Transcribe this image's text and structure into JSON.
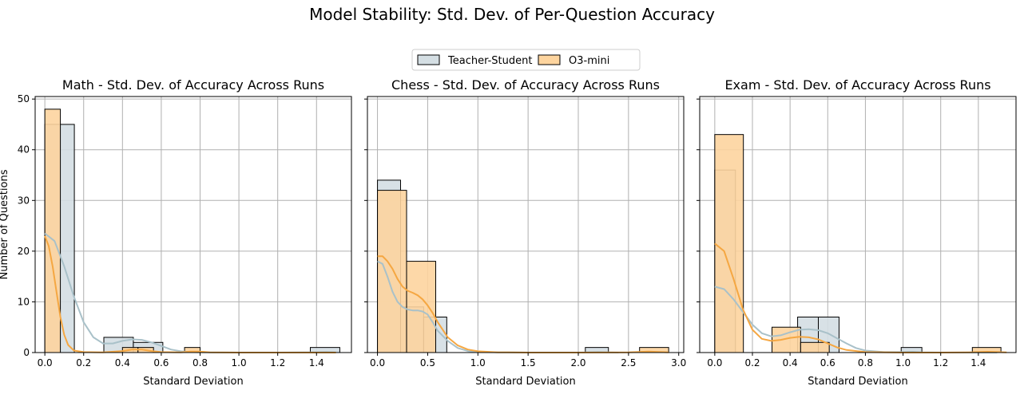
{
  "title": "Model Stability: Std. Dev. of Per-Question Accuracy",
  "legend": [
    {
      "name": "Teacher-Student",
      "color": "#d4dee3",
      "line": "#a9c1c9"
    },
    {
      "name": "O3-mini",
      "color": "#fdd49e",
      "line": "#f5a742"
    }
  ],
  "chart_data": [
    {
      "type": "histogram",
      "title": "Math - Std. Dev. of Accuracy Across Runs",
      "xlabel": "Standard Deviation",
      "ylabel": "Number of Questions",
      "xlim": [
        -0.05,
        1.58
      ],
      "ylim": [
        0,
        50.5
      ],
      "xticks": [
        0.0,
        0.2,
        0.4,
        0.6,
        0.8,
        1.0,
        1.2,
        1.4
      ],
      "xtick_labels": [
        "0.0",
        "0.2",
        "0.4",
        "0.6",
        "0.8",
        "1.0",
        "1.2",
        "1.4"
      ],
      "yticks": [
        0,
        10,
        20,
        30,
        40,
        50
      ],
      "ytick_labels": [
        "0",
        "10",
        "20",
        "30",
        "40",
        "50"
      ],
      "grid": true,
      "series": [
        {
          "name": "Teacher-Student",
          "bins": [
            [
              0.0,
              0.152,
              45
            ],
            [
              0.304,
              0.456,
              3
            ],
            [
              0.456,
              0.608,
              2
            ],
            [
              1.368,
              1.52,
              1
            ]
          ],
          "kde": [
            [
              0,
              23.5
            ],
            [
              0.05,
              22
            ],
            [
              0.1,
              17
            ],
            [
              0.15,
              11
            ],
            [
              0.2,
              6
            ],
            [
              0.25,
              3
            ],
            [
              0.3,
              1.8
            ],
            [
              0.35,
              1.8
            ],
            [
              0.4,
              2.3
            ],
            [
              0.45,
              2.6
            ],
            [
              0.5,
              2.5
            ],
            [
              0.55,
              2.0
            ],
            [
              0.6,
              1.3
            ],
            [
              0.65,
              0.6
            ],
            [
              0.7,
              0.25
            ],
            [
              0.75,
              0.1
            ],
            [
              0.8,
              0.05
            ],
            [
              1.0,
              0
            ],
            [
              1.2,
              0
            ],
            [
              1.4,
              0.05
            ],
            [
              1.45,
              0.1
            ],
            [
              1.5,
              0.05
            ]
          ]
        },
        {
          "name": "O3-mini",
          "bins": [
            [
              0.0,
              0.08,
              48
            ],
            [
              0.4,
              0.48,
              1
            ],
            [
              0.48,
              0.56,
              1
            ],
            [
              0.72,
              0.8,
              1
            ]
          ],
          "kde": [
            [
              0,
              23
            ],
            [
              0.02,
              21
            ],
            [
              0.04,
              17
            ],
            [
              0.06,
              12
            ],
            [
              0.08,
              7
            ],
            [
              0.1,
              3.5
            ],
            [
              0.12,
              1.5
            ],
            [
              0.15,
              0.4
            ],
            [
              0.2,
              0.1
            ],
            [
              0.3,
              0.05
            ],
            [
              0.4,
              0.3
            ],
            [
              0.45,
              0.6
            ],
            [
              0.5,
              0.6
            ],
            [
              0.55,
              0.3
            ],
            [
              0.6,
              0.1
            ],
            [
              0.7,
              0.05
            ],
            [
              0.75,
              0.2
            ],
            [
              0.8,
              0.2
            ],
            [
              0.85,
              0.05
            ],
            [
              1.0,
              0
            ],
            [
              1.2,
              0
            ],
            [
              1.4,
              0
            ],
            [
              1.5,
              0
            ]
          ]
        }
      ]
    },
    {
      "type": "histogram",
      "title": "Chess - Std. Dev. of Accuracy Across Runs",
      "xlabel": "Standard Deviation",
      "ylabel": "",
      "xlim": [
        -0.1,
        3.05
      ],
      "ylim": [
        0,
        50.5
      ],
      "xticks": [
        0.0,
        0.5,
        1.0,
        1.5,
        2.0,
        2.5,
        3.0
      ],
      "xtick_labels": [
        "0.0",
        "0.5",
        "1.0",
        "1.5",
        "2.0",
        "2.5",
        "3.0"
      ],
      "yticks": [
        0,
        10,
        20,
        30,
        40,
        50
      ],
      "ytick_labels": [
        "",
        "",
        "",
        "",
        "",
        ""
      ],
      "grid": true,
      "series": [
        {
          "name": "Teacher-Student",
          "bins": [
            [
              0.0,
              0.23,
              34
            ],
            [
              0.23,
              0.46,
              9
            ],
            [
              0.46,
              0.69,
              7
            ],
            [
              2.07,
              2.3,
              1
            ]
          ],
          "kde": [
            [
              0,
              18
            ],
            [
              0.05,
              17.5
            ],
            [
              0.1,
              15
            ],
            [
              0.15,
              12
            ],
            [
              0.2,
              10
            ],
            [
              0.25,
              9
            ],
            [
              0.3,
              8.5
            ],
            [
              0.35,
              8.3
            ],
            [
              0.4,
              8.3
            ],
            [
              0.45,
              8.1
            ],
            [
              0.5,
              7.5
            ],
            [
              0.55,
              6
            ],
            [
              0.6,
              4.3
            ],
            [
              0.7,
              2.3
            ],
            [
              0.8,
              0.9
            ],
            [
              0.9,
              0.3
            ],
            [
              1.0,
              0.1
            ],
            [
              1.2,
              0.05
            ],
            [
              1.5,
              0
            ],
            [
              2.0,
              0
            ],
            [
              2.1,
              0.05
            ],
            [
              2.2,
              0.1
            ],
            [
              2.3,
              0.05
            ],
            [
              2.4,
              0
            ]
          ]
        },
        {
          "name": "O3-mini",
          "bins": [
            [
              0.0,
              0.29,
              32
            ],
            [
              0.29,
              0.58,
              18
            ],
            [
              2.61,
              2.9,
              1
            ]
          ],
          "kde": [
            [
              0,
              19
            ],
            [
              0.05,
              19
            ],
            [
              0.1,
              18
            ],
            [
              0.15,
              16.5
            ],
            [
              0.2,
              14.5
            ],
            [
              0.25,
              13
            ],
            [
              0.3,
              12.2
            ],
            [
              0.35,
              11.8
            ],
            [
              0.4,
              11.3
            ],
            [
              0.45,
              10.5
            ],
            [
              0.5,
              9.3
            ],
            [
              0.55,
              7.8
            ],
            [
              0.6,
              6
            ],
            [
              0.7,
              3
            ],
            [
              0.8,
              1.4
            ],
            [
              0.9,
              0.6
            ],
            [
              1.0,
              0.25
            ],
            [
              1.2,
              0.05
            ],
            [
              1.5,
              0
            ],
            [
              2.0,
              0
            ],
            [
              2.5,
              0.05
            ],
            [
              2.7,
              0.2
            ],
            [
              2.9,
              0.05
            ]
          ]
        }
      ]
    },
    {
      "type": "histogram",
      "title": "Exam - Std. Dev. of Accuracy Across Runs",
      "xlabel": "Standard Deviation",
      "ylabel": "",
      "xlim": [
        -0.08,
        1.6
      ],
      "ylim": [
        0,
        50.5
      ],
      "xticks": [
        0.0,
        0.2,
        0.4,
        0.6,
        0.8,
        1.0,
        1.2,
        1.4
      ],
      "xtick_labels": [
        "0.0",
        "0.2",
        "0.4",
        "0.6",
        "0.8",
        "1.0",
        "1.2",
        "1.4"
      ],
      "yticks": [
        0,
        10,
        20,
        30,
        40,
        50
      ],
      "ytick_labels": [
        "",
        "",
        "",
        "",
        "",
        ""
      ],
      "grid": true,
      "series": [
        {
          "name": "Teacher-Student",
          "bins": [
            [
              0.0,
              0.11,
              36
            ],
            [
              0.44,
              0.55,
              7
            ],
            [
              0.55,
              0.66,
              7
            ],
            [
              0.99,
              1.1,
              1
            ]
          ],
          "kde": [
            [
              0,
              13
            ],
            [
              0.05,
              12.5
            ],
            [
              0.1,
              10.5
            ],
            [
              0.15,
              8
            ],
            [
              0.2,
              5.5
            ],
            [
              0.25,
              3.8
            ],
            [
              0.3,
              3.2
            ],
            [
              0.35,
              3.4
            ],
            [
              0.4,
              4
            ],
            [
              0.45,
              4.5
            ],
            [
              0.5,
              4.6
            ],
            [
              0.55,
              4.4
            ],
            [
              0.6,
              3.8
            ],
            [
              0.65,
              2.8
            ],
            [
              0.7,
              1.8
            ],
            [
              0.75,
              0.9
            ],
            [
              0.8,
              0.4
            ],
            [
              0.9,
              0.1
            ],
            [
              1.0,
              0.1
            ],
            [
              1.05,
              0.15
            ],
            [
              1.1,
              0.05
            ],
            [
              1.2,
              0
            ],
            [
              1.4,
              0
            ],
            [
              1.5,
              0
            ]
          ]
        },
        {
          "name": "O3-mini",
          "bins": [
            [
              0.0,
              0.152,
              43
            ],
            [
              0.304,
              0.456,
              5
            ],
            [
              0.456,
              0.608,
              2
            ],
            [
              1.368,
              1.52,
              1
            ]
          ],
          "kde": [
            [
              0,
              21.5
            ],
            [
              0.05,
              20
            ],
            [
              0.1,
              14.5
            ],
            [
              0.15,
              8.5
            ],
            [
              0.2,
              4.5
            ],
            [
              0.25,
              2.7
            ],
            [
              0.3,
              2.3
            ],
            [
              0.35,
              2.5
            ],
            [
              0.4,
              2.9
            ],
            [
              0.45,
              3.1
            ],
            [
              0.5,
              3
            ],
            [
              0.55,
              2.6
            ],
            [
              0.6,
              1.8
            ],
            [
              0.65,
              1
            ],
            [
              0.7,
              0.5
            ],
            [
              0.8,
              0.1
            ],
            [
              1.0,
              0
            ],
            [
              1.2,
              0
            ],
            [
              1.35,
              0.05
            ],
            [
              1.45,
              0.15
            ],
            [
              1.5,
              0.1
            ],
            [
              1.55,
              0.05
            ]
          ]
        }
      ]
    }
  ]
}
